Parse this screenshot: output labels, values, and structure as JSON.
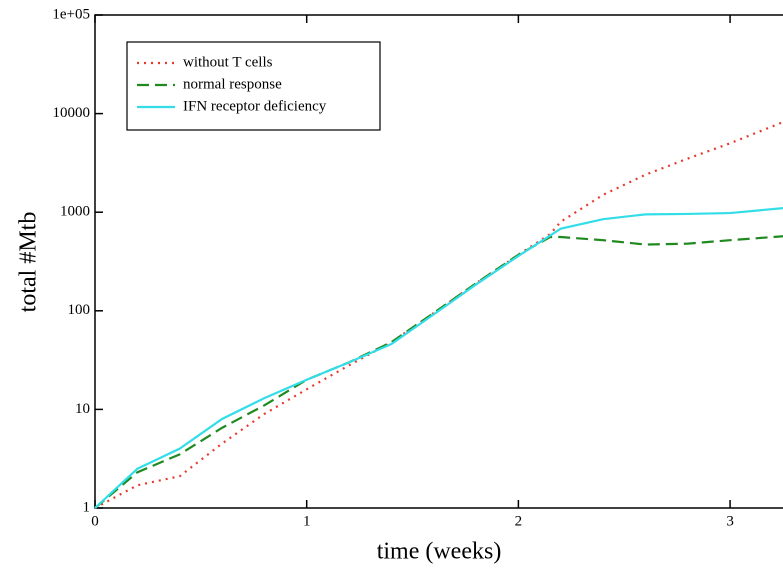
{
  "chart_data": {
    "type": "line",
    "xlabel": "time (weeks)",
    "ylabel": "total #Mtb",
    "log_y": true,
    "x": [
      0,
      0.2,
      0.4,
      0.6,
      0.8,
      1,
      1.2,
      1.4,
      1.6,
      1.8,
      2,
      2.15,
      2.2,
      2.4,
      2.6,
      2.8,
      3,
      3.25
    ],
    "series": [
      {
        "name": "without T cells",
        "color": "#e8392f",
        "dash": "2,5",
        "values": [
          1,
          1.7,
          2.1,
          4.5,
          9,
          16,
          28,
          48,
          95,
          190,
          370,
          600,
          800,
          1500,
          2400,
          3500,
          5000,
          8200
        ]
      },
      {
        "name": "normal response",
        "color": "#1f8a1f",
        "dash": "12,6",
        "values": [
          1,
          2.3,
          3.5,
          6.5,
          11,
          20,
          30,
          48,
          95,
          190,
          370,
          560,
          560,
          520,
          470,
          480,
          520,
          570
        ]
      },
      {
        "name": "IFN receptor deficiency",
        "color": "#33dde8",
        "dash": "none",
        "values": [
          1,
          2.5,
          4,
          8,
          13,
          20,
          30,
          46,
          92,
          185,
          360,
          580,
          680,
          850,
          950,
          960,
          980,
          1100
        ]
      }
    ],
    "xlim": [
      0,
      3.25
    ],
    "xticks": [
      0,
      1,
      2,
      3
    ],
    "ylim": [
      1,
      100000
    ],
    "yticks": [
      1,
      10,
      100,
      1000,
      10000,
      {
        "value": 100000,
        "label": "1e+05"
      }
    ],
    "legend": "upper-left"
  }
}
